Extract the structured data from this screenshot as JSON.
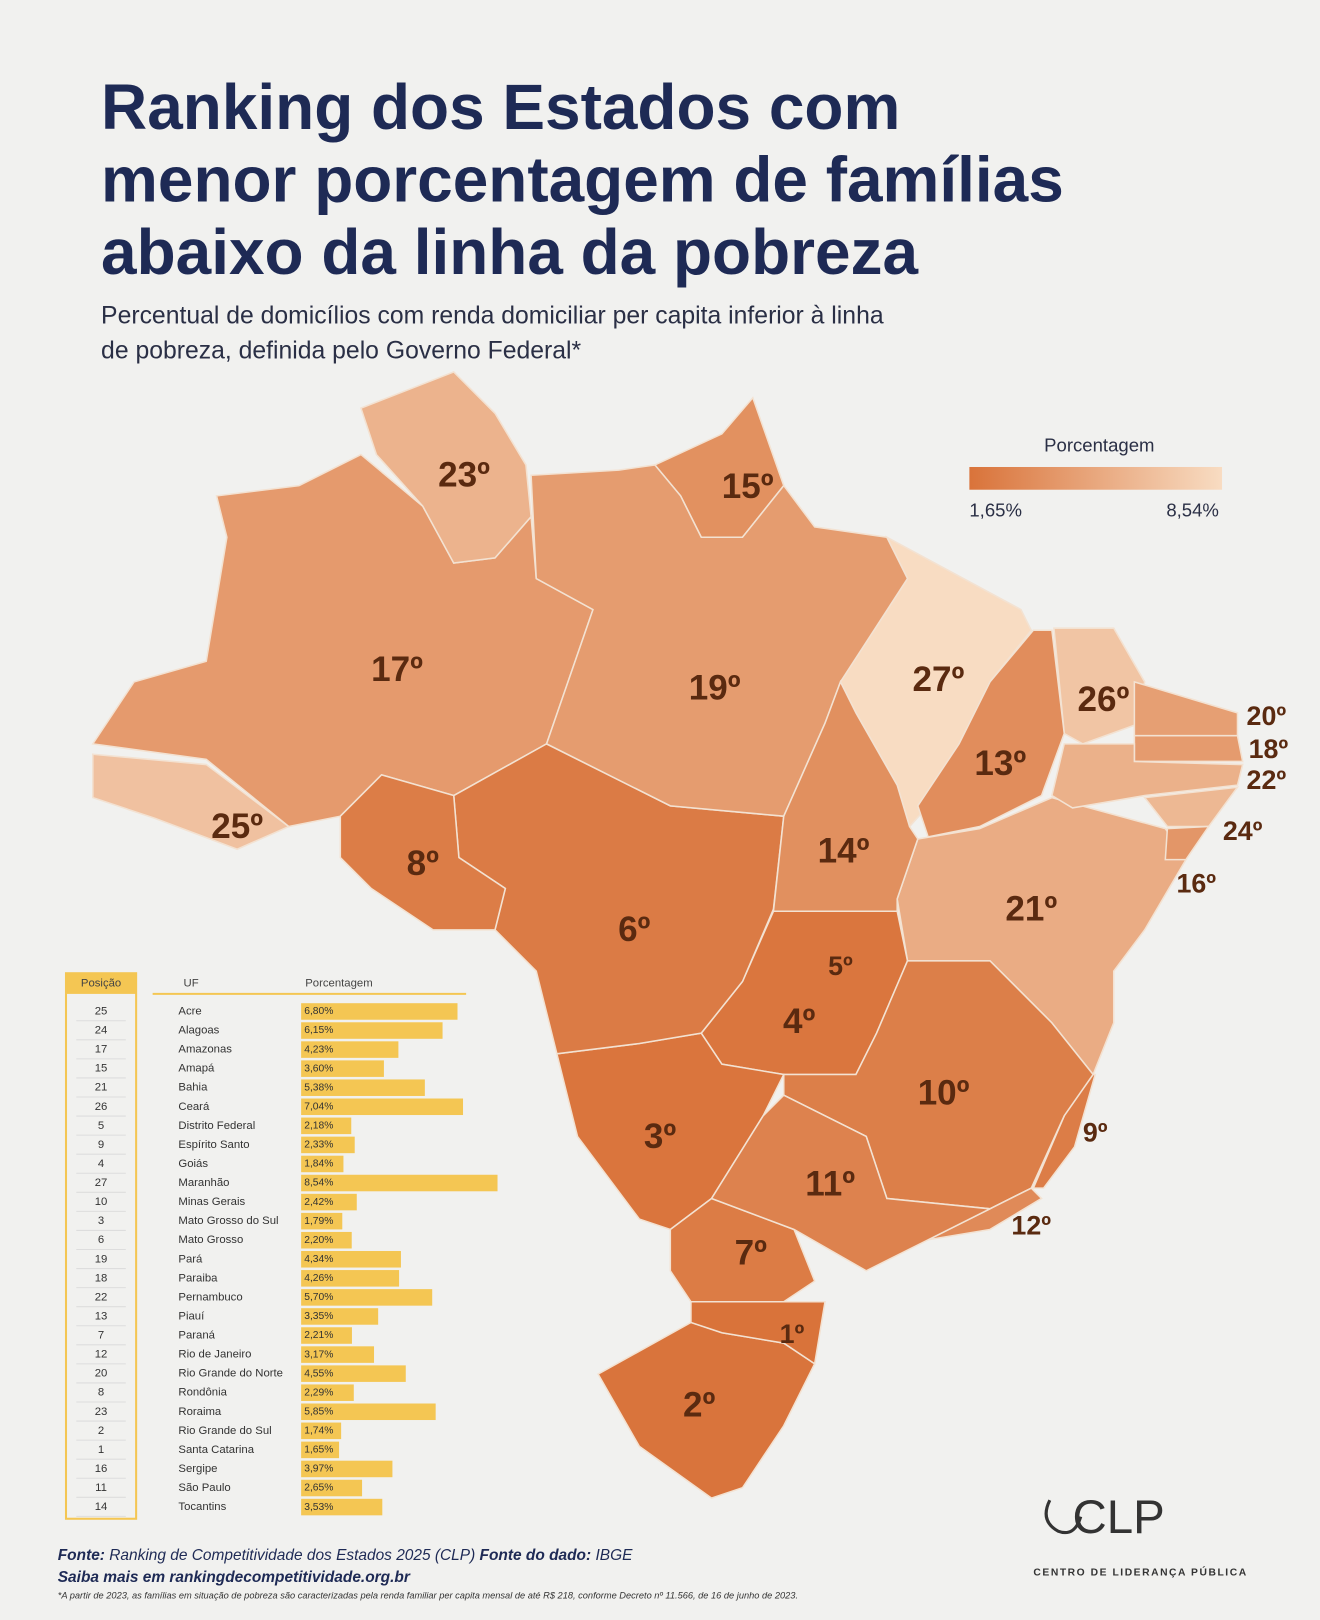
{
  "header": {
    "title_lines": [
      "Ranking dos Estados com",
      "menor porcentagem de famílias",
      "abaixo da linha da pobreza"
    ],
    "subtitle_lines": [
      "Percentual de domicílios com renda domiciliar per capita inferior à linha",
      "de pobreza, definida pelo Governo Federal*"
    ]
  },
  "legend": {
    "title": "Porcentagem",
    "min": 1.65,
    "min_label": "1,65%",
    "max": 8.54,
    "max_label": "8,54%",
    "color_low": "#d9733a",
    "color_high": "#f8dcc2"
  },
  "table": {
    "columns": [
      "Posição",
      "UF",
      "Porcentagem"
    ],
    "bar_color": "#f4c653",
    "rows": [
      {
        "position": 25,
        "uf": "Acre",
        "value": 6.8,
        "value_label": "6,80%"
      },
      {
        "position": 24,
        "uf": "Alagoas",
        "value": 6.15,
        "value_label": "6,15%"
      },
      {
        "position": 17,
        "uf": "Amazonas",
        "value": 4.23,
        "value_label": "4,23%"
      },
      {
        "position": 15,
        "uf": "Amapá",
        "value": 3.6,
        "value_label": "3,60%"
      },
      {
        "position": 21,
        "uf": "Bahia",
        "value": 5.38,
        "value_label": "5,38%"
      },
      {
        "position": 26,
        "uf": "Ceará",
        "value": 7.04,
        "value_label": "7,04%"
      },
      {
        "position": 5,
        "uf": "Distrito Federal",
        "value": 2.18,
        "value_label": "2,18%"
      },
      {
        "position": 9,
        "uf": "Espírito Santo",
        "value": 2.33,
        "value_label": "2,33%"
      },
      {
        "position": 4,
        "uf": "Goiás",
        "value": 1.84,
        "value_label": "1,84%"
      },
      {
        "position": 27,
        "uf": "Maranhão",
        "value": 8.54,
        "value_label": "8,54%"
      },
      {
        "position": 10,
        "uf": "Minas Gerais",
        "value": 2.42,
        "value_label": "2,42%"
      },
      {
        "position": 3,
        "uf": "Mato Grosso do Sul",
        "value": 1.79,
        "value_label": "1,79%"
      },
      {
        "position": 6,
        "uf": "Mato Grosso",
        "value": 2.2,
        "value_label": "2,20%"
      },
      {
        "position": 19,
        "uf": "Pará",
        "value": 4.34,
        "value_label": "4,34%"
      },
      {
        "position": 18,
        "uf": "Paraiba",
        "value": 4.26,
        "value_label": "4,26%"
      },
      {
        "position": 22,
        "uf": "Pernambuco",
        "value": 5.7,
        "value_label": "5,70%"
      },
      {
        "position": 13,
        "uf": "Piauí",
        "value": 3.35,
        "value_label": "3,35%"
      },
      {
        "position": 7,
        "uf": "Paraná",
        "value": 2.21,
        "value_label": "2,21%"
      },
      {
        "position": 12,
        "uf": "Rio de Janeiro",
        "value": 3.17,
        "value_label": "3,17%"
      },
      {
        "position": 20,
        "uf": "Rio Grande do Norte",
        "value": 4.55,
        "value_label": "4,55%"
      },
      {
        "position": 8,
        "uf": "Rondônia",
        "value": 2.29,
        "value_label": "2,29%"
      },
      {
        "position": 23,
        "uf": "Roraima",
        "value": 5.85,
        "value_label": "5,85%"
      },
      {
        "position": 2,
        "uf": "Rio Grande do Sul",
        "value": 1.74,
        "value_label": "1,74%"
      },
      {
        "position": 1,
        "uf": "Santa Catarina",
        "value": 1.65,
        "value_label": "1,65%"
      },
      {
        "position": 16,
        "uf": "Sergipe",
        "value": 3.97,
        "value_label": "3,97%"
      },
      {
        "position": 11,
        "uf": "São Paulo",
        "value": 2.65,
        "value_label": "2,65%"
      },
      {
        "position": 14,
        "uf": "Tocantins",
        "value": 3.53,
        "value_label": "3,53%"
      }
    ]
  },
  "map_labels": [
    "25º",
    "24º",
    "17º",
    "15º",
    "21º",
    "26º",
    "5º",
    "9º",
    "4º",
    "27º",
    "10º",
    "3º",
    "6º",
    "19º",
    "18º",
    "22º",
    "13º",
    "7º",
    "12º",
    "20º",
    "8º",
    "23º",
    "2º",
    "1º",
    "16º",
    "11º",
    "14º"
  ],
  "footer": {
    "source_label": "Fonte:",
    "source": "Ranking de Competitividade dos Estados 2025 (CLP)",
    "data_source_label": "Fonte do dado:",
    "data_source": "IBGE",
    "link": "Saiba mais em rankingdecompetitividade.org.br",
    "note": "*A partir de 2023, as famílias em situação de pobreza são caracterizadas pela renda familiar per capita mensal de até R$ 218, conforme Decreto nº 11.566, de 16 de junho de 2023."
  },
  "logo": {
    "mark": "CLP",
    "name": "CENTRO DE LIDERANÇA PÚBLICA"
  }
}
